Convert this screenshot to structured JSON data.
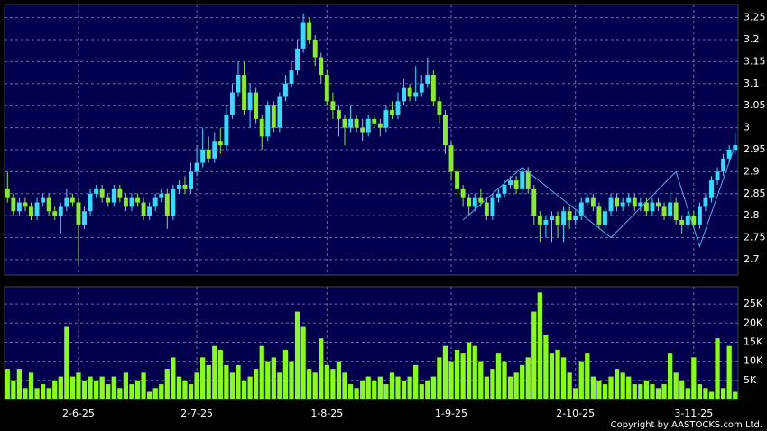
{
  "chart_data": {
    "type": "candlestick",
    "categories": [
      null,
      null,
      null,
      null,
      null,
      null,
      null,
      null,
      null,
      null,
      null,
      null,
      "2-6-25",
      null,
      null,
      null,
      null,
      null,
      null,
      null,
      null,
      null,
      null,
      null,
      null,
      null,
      null,
      null,
      null,
      null,
      null,
      null,
      "2-7-25",
      null,
      null,
      null,
      null,
      null,
      null,
      null,
      null,
      null,
      null,
      null,
      null,
      null,
      null,
      null,
      null,
      null,
      null,
      null,
      null,
      null,
      "1-8-25",
      null,
      null,
      null,
      null,
      null,
      null,
      null,
      null,
      null,
      null,
      null,
      null,
      null,
      null,
      null,
      null,
      null,
      null,
      null,
      null,
      "1-9-25",
      null,
      null,
      null,
      null,
      null,
      null,
      null,
      null,
      null,
      null,
      null,
      null,
      null,
      null,
      null,
      null,
      null,
      null,
      null,
      null,
      "2-10-25",
      null,
      null,
      null,
      null,
      null,
      null,
      null,
      null,
      null,
      null,
      null,
      null,
      null,
      null,
      null,
      null,
      null,
      null,
      null,
      "3-11-25",
      null,
      null,
      null,
      null,
      null,
      null,
      null
    ],
    "open": [
      2.86,
      2.84,
      2.81,
      2.83,
      2.82,
      2.8,
      2.83,
      2.84,
      2.81,
      2.8,
      2.82,
      2.84,
      2.83,
      2.78,
      2.81,
      2.85,
      2.86,
      2.84,
      2.83,
      2.86,
      2.84,
      2.82,
      2.84,
      2.83,
      2.8,
      2.82,
      2.84,
      2.85,
      2.8,
      2.86,
      2.87,
      2.86,
      2.9,
      2.92,
      2.95,
      2.93,
      2.97,
      2.96,
      3.03,
      3.08,
      3.12,
      3.04,
      3.08,
      3.02,
      2.98,
      3.05,
      3.0,
      3.07,
      3.1,
      3.13,
      3.18,
      3.24,
      3.2,
      3.16,
      3.12,
      3.06,
      3.04,
      3.02,
      3.0,
      3.02,
      3.0,
      2.99,
      3.02,
      3.01,
      3.0,
      3.04,
      3.03,
      3.06,
      3.09,
      3.07,
      3.08,
      3.1,
      3.12,
      3.06,
      3.03,
      2.96,
      2.9,
      2.86,
      2.84,
      2.82,
      2.84,
      2.83,
      2.8,
      2.84,
      2.85,
      2.87,
      2.88,
      2.86,
      2.9,
      2.86,
      2.8,
      2.78,
      2.79,
      2.8,
      2.78,
      2.81,
      2.79,
      2.8,
      2.83,
      2.84,
      2.82,
      2.78,
      2.81,
      2.84,
      2.82,
      2.83,
      2.84,
      2.82,
      2.83,
      2.81,
      2.83,
      2.82,
      2.8,
      2.83,
      2.79,
      2.78,
      2.8,
      2.78,
      2.82,
      2.84,
      2.88,
      2.9,
      2.93,
      2.95
    ],
    "high": [
      2.9,
      2.85,
      2.84,
      2.84,
      2.83,
      2.84,
      2.85,
      2.85,
      2.82,
      2.83,
      2.86,
      2.85,
      2.84,
      2.82,
      2.86,
      2.87,
      2.87,
      2.85,
      2.87,
      2.87,
      2.85,
      2.85,
      2.85,
      2.84,
      2.83,
      2.85,
      2.86,
      2.86,
      2.87,
      2.88,
      2.89,
      2.92,
      2.96,
      3.0,
      2.98,
      2.99,
      3.0,
      3.05,
      3.1,
      3.15,
      3.15,
      3.1,
      3.09,
      3.03,
      3.06,
      3.06,
      3.08,
      3.12,
      3.15,
      3.2,
      3.26,
      3.25,
      3.21,
      3.17,
      3.13,
      3.08,
      3.05,
      3.03,
      3.05,
      3.03,
      3.02,
      3.03,
      3.03,
      3.02,
      3.05,
      3.06,
      3.08,
      3.11,
      3.1,
      3.14,
      3.12,
      3.16,
      3.13,
      3.07,
      3.04,
      2.97,
      2.91,
      2.87,
      2.85,
      2.85,
      2.86,
      2.84,
      2.85,
      2.86,
      2.88,
      2.89,
      2.89,
      2.91,
      2.91,
      2.87,
      2.81,
      2.8,
      2.81,
      2.81,
      2.82,
      2.82,
      2.81,
      2.84,
      2.85,
      2.85,
      2.83,
      2.82,
      2.85,
      2.85,
      2.84,
      2.85,
      2.85,
      2.84,
      2.84,
      2.84,
      2.84,
      2.83,
      2.85,
      2.84,
      2.8,
      2.81,
      2.81,
      2.83,
      2.85,
      2.89,
      2.91,
      2.94,
      2.96,
      2.99
    ],
    "low": [
      2.83,
      2.8,
      2.8,
      2.81,
      2.79,
      2.79,
      2.82,
      2.8,
      2.79,
      2.76,
      2.81,
      2.82,
      2.69,
      2.77,
      2.8,
      2.84,
      2.83,
      2.82,
      2.82,
      2.83,
      2.81,
      2.81,
      2.82,
      2.79,
      2.79,
      2.81,
      2.83,
      2.77,
      2.79,
      2.85,
      2.85,
      2.85,
      2.89,
      2.91,
      2.92,
      2.92,
      2.94,
      2.95,
      3.02,
      3.07,
      3.03,
      3.0,
      3.01,
      2.95,
      2.97,
      2.99,
      2.99,
      3.06,
      3.09,
      3.12,
      3.17,
      3.19,
      3.14,
      3.1,
      3.05,
      3.02,
      2.98,
      2.96,
      2.99,
      2.99,
      2.97,
      2.98,
      3.0,
      2.98,
      2.99,
      3.02,
      3.02,
      3.05,
      3.06,
      3.06,
      3.07,
      3.09,
      3.05,
      3.01,
      2.94,
      2.88,
      2.84,
      2.82,
      2.8,
      2.81,
      2.82,
      2.79,
      2.79,
      2.83,
      2.84,
      2.86,
      2.85,
      2.85,
      2.85,
      2.78,
      2.74,
      2.75,
      2.74,
      2.75,
      2.74,
      2.77,
      2.78,
      2.79,
      2.82,
      2.81,
      2.77,
      2.77,
      2.8,
      2.81,
      2.81,
      2.82,
      2.81,
      2.81,
      2.8,
      2.8,
      2.81,
      2.79,
      2.79,
      2.78,
      2.76,
      2.77,
      2.77,
      2.77,
      2.81,
      2.83,
      2.87,
      2.89,
      2.92,
      2.94
    ],
    "close": [
      2.84,
      2.81,
      2.83,
      2.82,
      2.8,
      2.83,
      2.84,
      2.81,
      2.8,
      2.82,
      2.84,
      2.83,
      2.78,
      2.81,
      2.85,
      2.86,
      2.84,
      2.83,
      2.86,
      2.84,
      2.82,
      2.84,
      2.83,
      2.8,
      2.82,
      2.84,
      2.85,
      2.8,
      2.86,
      2.87,
      2.86,
      2.9,
      2.92,
      2.95,
      2.93,
      2.97,
      2.96,
      3.03,
      3.08,
      3.12,
      3.04,
      3.08,
      3.02,
      2.98,
      3.05,
      3.0,
      3.07,
      3.1,
      3.13,
      3.18,
      3.24,
      3.2,
      3.16,
      3.12,
      3.06,
      3.04,
      3.02,
      3.0,
      3.02,
      3.0,
      2.99,
      3.02,
      3.01,
      3.0,
      3.04,
      3.03,
      3.06,
      3.09,
      3.07,
      3.08,
      3.1,
      3.12,
      3.06,
      3.03,
      2.96,
      2.9,
      2.86,
      2.84,
      2.82,
      2.84,
      2.83,
      2.8,
      2.84,
      2.85,
      2.87,
      2.88,
      2.86,
      2.9,
      2.86,
      2.8,
      2.78,
      2.79,
      2.8,
      2.78,
      2.81,
      2.79,
      2.8,
      2.83,
      2.84,
      2.82,
      2.78,
      2.81,
      2.84,
      2.82,
      2.83,
      2.84,
      2.82,
      2.83,
      2.81,
      2.83,
      2.82,
      2.8,
      2.83,
      2.79,
      2.78,
      2.8,
      2.78,
      2.82,
      2.84,
      2.88,
      2.9,
      2.93,
      2.95,
      2.96
    ],
    "up_color": "#33ddff",
    "down_color": "#88ee22",
    "ylim": [
      2.665,
      3.28
    ],
    "yticks": [
      2.7,
      2.75,
      2.8,
      2.85,
      2.9,
      2.95,
      3,
      3.05,
      3.1,
      3.15,
      3.2,
      3.25
    ],
    "grid": true,
    "overlay": {
      "color": "#4fa8ee",
      "x": [
        77,
        87,
        102,
        113,
        117,
        123
      ],
      "values": [
        2.79,
        2.91,
        2.75,
        2.9,
        2.73,
        2.96
      ]
    },
    "volume": {
      "color": "#88ff11",
      "ylim": [
        0,
        29500
      ],
      "yticks": [
        {
          "value": 5000,
          "label": "5K"
        },
        {
          "value": 10000,
          "label": "10K"
        },
        {
          "value": 15000,
          "label": "15K"
        },
        {
          "value": 20000,
          "label": "20K"
        },
        {
          "value": 25000,
          "label": "25K"
        }
      ],
      "values": [
        8000,
        5000,
        8000,
        3000,
        7000,
        3000,
        4000,
        3000,
        5000,
        6000,
        19000,
        6000,
        7000,
        5000,
        6000,
        5000,
        6000,
        4000,
        6000,
        3000,
        7000,
        4000,
        5000,
        7000,
        2000,
        3000,
        4000,
        8000,
        11000,
        6000,
        5000,
        4000,
        7000,
        11000,
        9000,
        14000,
        13000,
        9000,
        7000,
        9000,
        5000,
        6000,
        8000,
        14000,
        10000,
        11000,
        7000,
        13000,
        10000,
        23000,
        19000,
        8000,
        7000,
        16000,
        9000,
        8000,
        10000,
        7000,
        4000,
        3000,
        5000,
        6000,
        5000,
        6000,
        4000,
        7000,
        6000,
        5000,
        6000,
        9000,
        4000,
        5000,
        6000,
        11000,
        14000,
        10000,
        13000,
        12000,
        15000,
        14000,
        10000,
        6000,
        8000,
        12000,
        10000,
        6000,
        7000,
        9000,
        11000,
        23000,
        28000,
        17000,
        12000,
        13000,
        11000,
        7000,
        3000,
        10000,
        12000,
        6000,
        5000,
        4000,
        6000,
        8000,
        7000,
        6000,
        4000,
        4000,
        5000,
        4000,
        3000,
        4000,
        12000,
        7000,
        5000,
        3000,
        11000,
        4000,
        3000,
        2000,
        16000,
        3000,
        14000,
        2000
      ]
    },
    "copyright": "Copyright by AASTOCKS.com Ltd."
  }
}
